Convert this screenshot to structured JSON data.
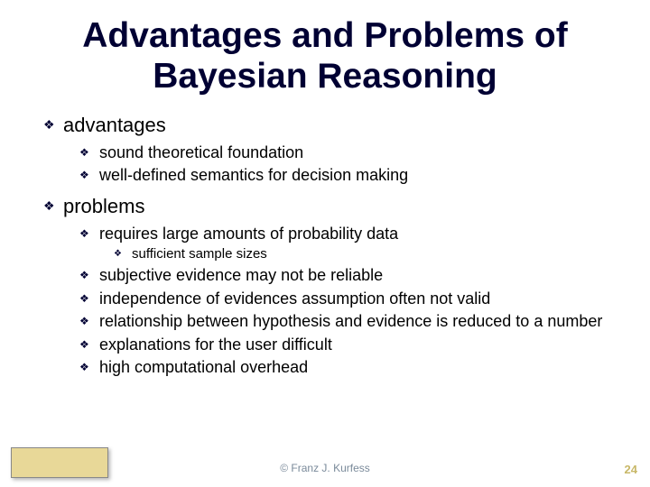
{
  "title": "Advantages and Problems of Bayesian Reasoning",
  "sections": [
    {
      "label": "advantages",
      "items": [
        {
          "text": "sound theoretical foundation"
        },
        {
          "text": "well-defined semantics for decision making"
        }
      ]
    },
    {
      "label": "problems",
      "items": [
        {
          "text": "requires large amounts of probability data",
          "sub": [
            {
              "text": "sufficient sample sizes"
            }
          ]
        },
        {
          "text": "subjective evidence may not be reliable"
        },
        {
          "text": "independence of evidences assumption often not valid"
        },
        {
          "text": "relationship between hypothesis and evidence is reduced to a number"
        },
        {
          "text": "explanations for the user difficult"
        },
        {
          "text": "high computational overhead"
        }
      ]
    }
  ],
  "copyright": "© Franz J. Kurfess",
  "page_number": "24",
  "bullet_glyph": "❖",
  "colors": {
    "title": "#000033",
    "bullet": "#000033",
    "text": "#000000",
    "copyright": "#7a8a9a",
    "pagenum": "#c8b868",
    "footer_box_bg": "#e8d898"
  }
}
